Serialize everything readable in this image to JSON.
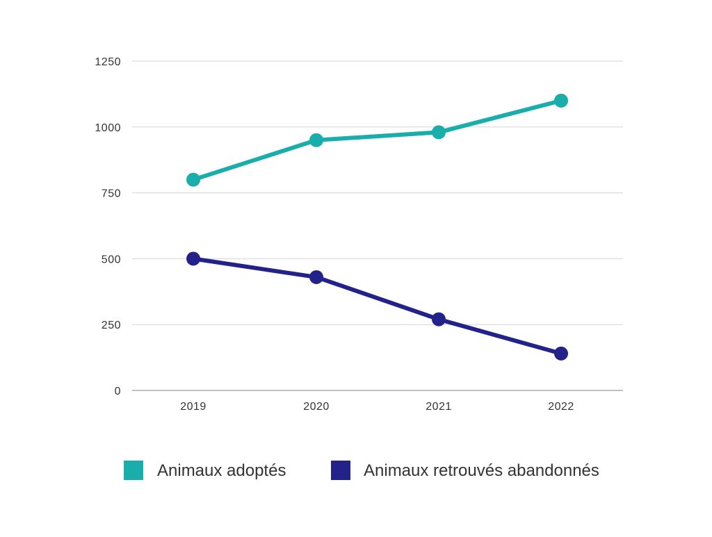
{
  "chart_data": {
    "type": "line",
    "categories": [
      "2019",
      "2020",
      "2021",
      "2022"
    ],
    "series": [
      {
        "name": "Animaux adoptés",
        "color": "#19adac",
        "values": [
          800,
          950,
          980,
          1100
        ]
      },
      {
        "name": "Animaux retrouvés abandonnés",
        "color": "#22228a",
        "values": [
          500,
          430,
          270,
          140
        ]
      }
    ],
    "y_ticks": [
      "0",
      "250",
      "500",
      "750",
      "1000",
      "1250"
    ],
    "ylim": [
      0,
      1250
    ],
    "grid": true,
    "legend_position": "bottom",
    "gridline_color": "#d5d5d5",
    "axis_color": "#999999"
  }
}
